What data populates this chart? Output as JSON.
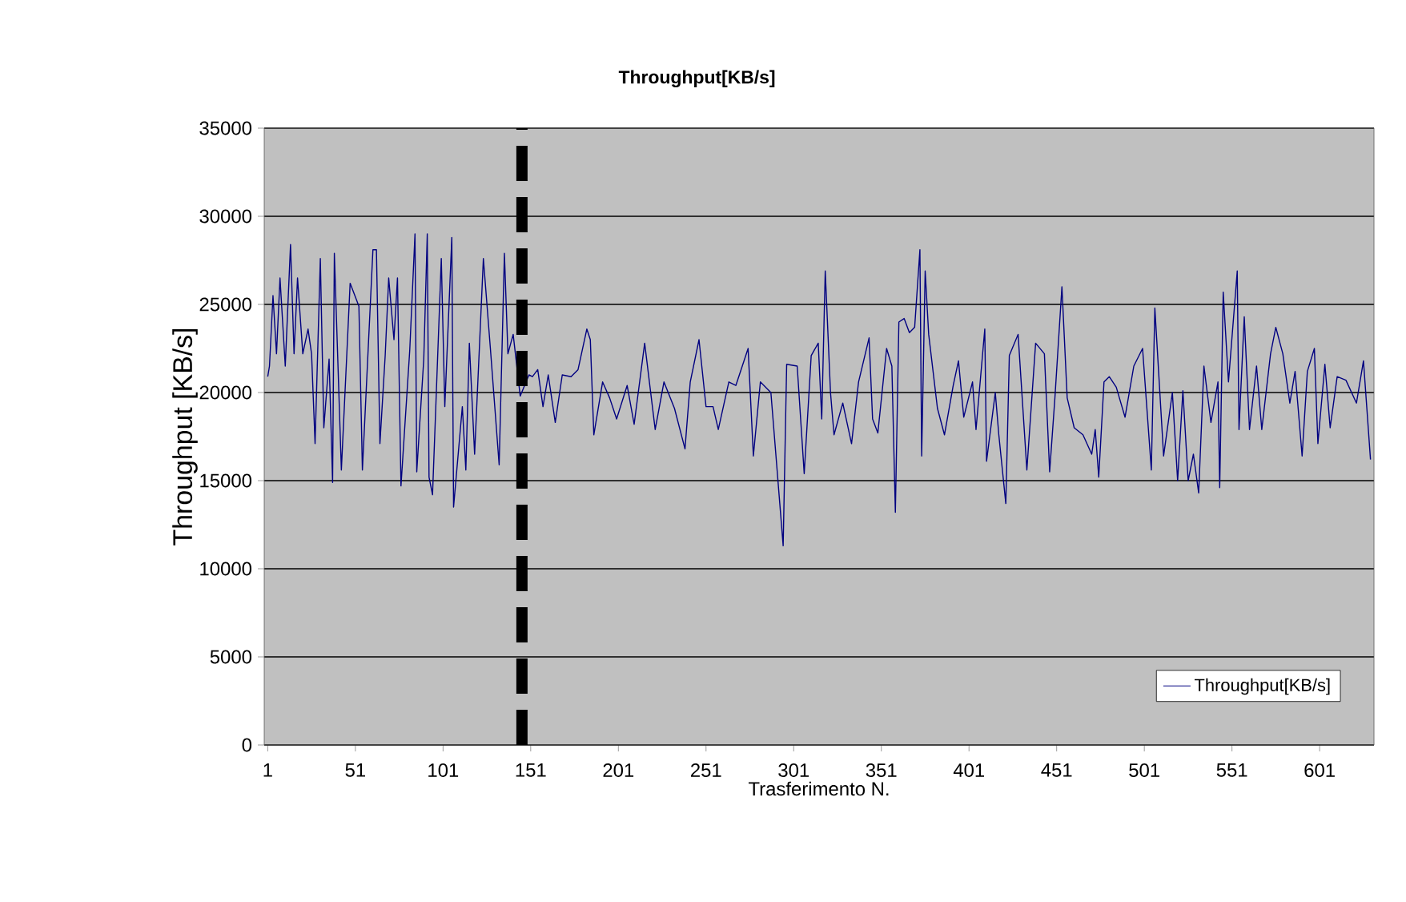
{
  "chart_data": {
    "type": "line",
    "title": "Throughput[KB/s]",
    "xlabel": "Trasferimento N.",
    "ylabel": "Throughput [KB/s]",
    "x": [
      1,
      2,
      4,
      6,
      8,
      11,
      14,
      16,
      18,
      21,
      24,
      26,
      28,
      31,
      33,
      36,
      38,
      39,
      43,
      48,
      53,
      55,
      61,
      63,
      65,
      68,
      70,
      73,
      75,
      77,
      82,
      85,
      86,
      90,
      92,
      93,
      95,
      100,
      102,
      106,
      107,
      112,
      114,
      116,
      119,
      124,
      128,
      133,
      136,
      138,
      141,
      145,
      150,
      152,
      155,
      158,
      161,
      165,
      169,
      174,
      178,
      183,
      185,
      187,
      192,
      196,
      200,
      206,
      210,
      216,
      222,
      227,
      233,
      239,
      242,
      247,
      251,
      255,
      258,
      264,
      268,
      275,
      278,
      282,
      288,
      295,
      297,
      303,
      307,
      311,
      315,
      317,
      319,
      322,
      324,
      329,
      334,
      338,
      344,
      346,
      349,
      354,
      357,
      359,
      361,
      364,
      367,
      370,
      373,
      374,
      376,
      378,
      383,
      387,
      392,
      395,
      398,
      403,
      405,
      410,
      411,
      416,
      418,
      422,
      424,
      429,
      434,
      439,
      444,
      447,
      450,
      454,
      457,
      461,
      466,
      471,
      473,
      475,
      478,
      481,
      485,
      490,
      495,
      500,
      505,
      507,
      512,
      517,
      520,
      523,
      526,
      529,
      532,
      535,
      539,
      543,
      544,
      546,
      549,
      554,
      555,
      558,
      561,
      565,
      568,
      573,
      576,
      580,
      584,
      587,
      591,
      594,
      598,
      600,
      604,
      607,
      611,
      616,
      622,
      626,
      630
    ],
    "series": [
      {
        "name": "Throughput[KB/s]",
        "color": "#000080",
        "values": [
          20900,
          21500,
          25500,
          22200,
          26500,
          21500,
          28400,
          22200,
          26500,
          22200,
          23600,
          22200,
          17100,
          27600,
          18000,
          21900,
          14900,
          27900,
          15600,
          26200,
          24900,
          15600,
          28100,
          28100,
          17100,
          22100,
          26500,
          23000,
          26500,
          14700,
          22400,
          29000,
          15500,
          21900,
          29000,
          15200,
          14200,
          27600,
          19200,
          28800,
          13500,
          19200,
          15600,
          22800,
          16500,
          27600,
          22500,
          15900,
          27900,
          22200,
          23300,
          19800,
          21000,
          20900,
          21300,
          19200,
          21000,
          18300,
          21000,
          20900,
          21300,
          23600,
          23000,
          17600,
          20600,
          19700,
          18500,
          20400,
          18200,
          22800,
          17900,
          20600,
          19100,
          16800,
          20600,
          23000,
          19200,
          19200,
          17900,
          20600,
          20400,
          22500,
          16400,
          20600,
          20000,
          11300,
          21600,
          21500,
          15400,
          22100,
          22800,
          18500,
          26900,
          20000,
          17600,
          19400,
          17100,
          20600,
          23100,
          18500,
          17700,
          22500,
          21500,
          13200,
          24000,
          24200,
          23400,
          23700,
          28100,
          16400,
          26900,
          23300,
          19100,
          17600,
          20400,
          21800,
          18600,
          20600,
          17900,
          23600,
          16100,
          20000,
          17600,
          13700,
          22100,
          23300,
          15600,
          22800,
          22200,
          15500,
          19700,
          26000,
          19700,
          18000,
          17600,
          16500,
          17900,
          15200,
          20600,
          20900,
          20300,
          18600,
          21500,
          22500,
          15600,
          24800,
          16400,
          20000,
          15000,
          20100,
          15000,
          16500,
          14300,
          21500,
          18300,
          20600,
          14600,
          25700,
          20600,
          26900,
          17900,
          24300,
          17900,
          21500,
          17900,
          22200,
          23700,
          22200,
          19400,
          21200,
          16400,
          21200,
          22500,
          17100,
          21600,
          18000,
          20900,
          20700,
          19400,
          21800,
          16200
        ]
      }
    ],
    "xlim": [
      -1,
      632
    ],
    "ylim": [
      0,
      35000
    ],
    "xticks": [
      1,
      51,
      101,
      151,
      201,
      251,
      301,
      351,
      401,
      451,
      501,
      551,
      601
    ],
    "yticks": [
      0,
      5000,
      10000,
      15000,
      20000,
      25000,
      30000,
      35000
    ],
    "grid": "y",
    "legend": "bottom right",
    "marker": "none",
    "line_style": "solid",
    "ref_lines": [
      {
        "axis": "x",
        "value": 146,
        "color": "#000000",
        "line_style": "dashed"
      }
    ]
  }
}
